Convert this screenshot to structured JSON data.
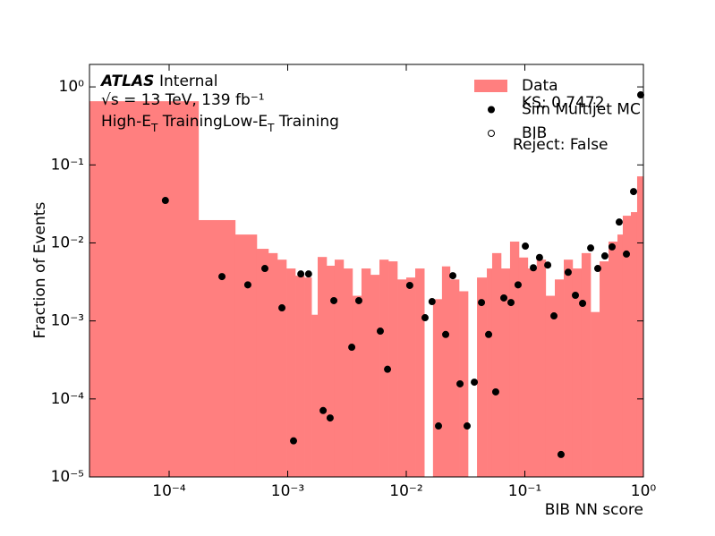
{
  "chart_data": {
    "type": "histogram",
    "xlabel": "BIB NN score",
    "ylabel": "Fraction of Events",
    "atlas": "ATLAS",
    "status": "Internal",
    "energy": "√s = 13 TeV, 139 fb⁻¹",
    "training": [
      "High-E",
      "T",
      " TrainingLow-E",
      "T",
      " Training"
    ],
    "annotations": [
      "KS: 0.7472",
      "Reject: False"
    ],
    "xscale": "log",
    "yscale": "log",
    "xlim": [
      2.13e-05,
      1
    ],
    "ylim": [
      1e-05,
      1.94
    ],
    "xticks": [
      {
        "value": 0.0001,
        "label": "10⁻⁴"
      },
      {
        "value": 0.001,
        "label": "10⁻³"
      },
      {
        "value": 0.01,
        "label": "10⁻²"
      },
      {
        "value": 0.1,
        "label": "10⁻¹"
      },
      {
        "value": 1,
        "label": "10⁰"
      }
    ],
    "yticks": [
      {
        "value": 1e-05,
        "label": "10⁻⁵"
      },
      {
        "value": 0.0001,
        "label": "10⁻⁴"
      },
      {
        "value": 0.001,
        "label": "10⁻³"
      },
      {
        "value": 0.01,
        "label": "10⁻²"
      },
      {
        "value": 0.1,
        "label": "10⁻¹"
      },
      {
        "value": 1,
        "label": "10⁰"
      }
    ],
    "series": [
      {
        "name": "Data",
        "type": "histogram",
        "color": "#ff7f7f",
        "bins": [
          2.13e-05,
          0.000177,
          0.000361,
          0.000549,
          0.000688,
          0.000819,
          0.000975,
          0.00116,
          0.00138,
          0.00159,
          0.00179,
          0.00213,
          0.00249,
          0.00296,
          0.00352,
          0.00419,
          0.00499,
          0.00594,
          0.00707,
          0.00841,
          0.01,
          0.0119,
          0.0142,
          0.0168,
          0.02,
          0.0234,
          0.0279,
          0.0332,
          0.0395,
          0.0478,
          0.053,
          0.0631,
          0.075,
          0.0893,
          0.106,
          0.126,
          0.15,
          0.179,
          0.213,
          0.253,
          0.301,
          0.359,
          0.427,
          0.508,
          0.604,
          0.67,
          0.784,
          0.885,
          1
        ],
        "values": [
          0.655,
          0.0196,
          0.0128,
          0.0084,
          0.0074,
          0.0061,
          0.0047,
          0.0038,
          0.0036,
          0.0012,
          0.0066,
          0.0051,
          0.0061,
          0.0047,
          0.0021,
          0.0047,
          0.0039,
          0.0061,
          0.0058,
          0.0034,
          0.0036,
          0.0047,
          0,
          0.0019,
          0.005,
          0.0034,
          0.0024,
          0,
          0.0036,
          0.0047,
          0.0074,
          0.0047,
          0.0104,
          0.0065,
          0.0047,
          0.0061,
          0.0021,
          0.0034,
          0.0061,
          0.0047,
          0.0074,
          0.0013,
          0.0058,
          0.0104,
          0.0128,
          0.0223,
          0.0248,
          0.0713
        ]
      },
      {
        "name": "Sim Multijet MC",
        "type": "scatter",
        "color": "#000000",
        "marker": "filled",
        "x": [
          9.3e-05,
          0.000279,
          0.000461,
          0.000642,
          0.000894,
          0.00112,
          0.00129,
          0.0015,
          0.00199,
          0.00228,
          0.00245,
          0.00347,
          0.00398,
          0.00604,
          0.00695,
          0.0107,
          0.0144,
          0.0165,
          0.0187,
          0.0215,
          0.0247,
          0.0284,
          0.0326,
          0.0375,
          0.0431,
          0.0495,
          0.0568,
          0.0665,
          0.0764,
          0.0877,
          0.101,
          0.118,
          0.133,
          0.156,
          0.176,
          0.202,
          0.232,
          0.267,
          0.307,
          0.359,
          0.412,
          0.473,
          0.544,
          0.625,
          0.719,
          0.826,
          0.949
        ],
        "values": [
          0.035,
          0.0037,
          0.0029,
          0.0047,
          0.00147,
          2.9e-05,
          0.004,
          0.004,
          7.1e-05,
          5.7e-05,
          0.00182,
          0.00046,
          0.00182,
          0.00074,
          0.00024,
          0.00285,
          0.0011,
          0.00177,
          4.5e-05,
          0.00067,
          0.0038,
          0.000156,
          4.5e-05,
          0.000164,
          0.00172,
          0.00067,
          0.000123,
          0.00197,
          0.00172,
          0.0029,
          0.0091,
          0.0048,
          0.0065,
          0.0052,
          0.00116,
          1.94e-05,
          0.0042,
          0.00213,
          0.00168,
          0.0086,
          0.0047,
          0.0068,
          0.0089,
          0.0185,
          0.0072,
          0.0455,
          0.79
        ]
      },
      {
        "name": "BIB",
        "type": "scatter",
        "color": "#000000",
        "marker": "open",
        "x": [],
        "values": []
      }
    ]
  }
}
